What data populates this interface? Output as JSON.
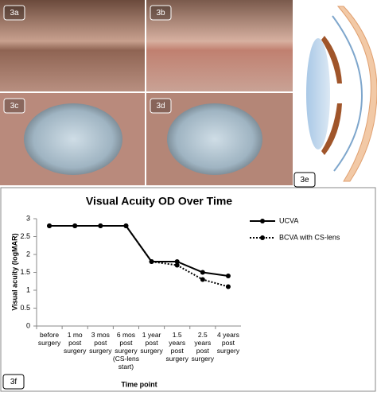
{
  "panels": {
    "labels": [
      "3a",
      "3b",
      "3c",
      "3d",
      "3e",
      "3f"
    ]
  },
  "chart_data": {
    "type": "line",
    "title": "Visual Acuity OD Over Time",
    "x_label": "Time point",
    "y_label": "Visual acuity (logMAR)",
    "categories": [
      "before\nsurgery",
      "1 mo\npost\nsurgery",
      "3 mos\npost\nsurgery",
      "6 mos\npost\nsurgery\n(CS-lens\nstart)",
      "1 year\npost\nsurgery",
      "1.5\nyears\npost\nsurgery",
      "2.5\nyears\npost\nsurgery",
      "4 years\npost\nsurgery"
    ],
    "series": [
      {
        "name": "UCVA",
        "color": "#000000",
        "line_style": "solid",
        "values": [
          2.8,
          2.8,
          2.8,
          2.8,
          1.8,
          1.8,
          1.5,
          1.4
        ]
      },
      {
        "name": "BCVA with CS-lens",
        "color": "#000000",
        "line_style": "dotted",
        "values": [
          2.8,
          2.8,
          2.8,
          2.8,
          1.8,
          1.7,
          1.3,
          1.1
        ]
      }
    ],
    "ylim": [
      0,
      3
    ],
    "yticks": [
      0,
      0.5,
      1,
      1.5,
      2,
      2.5,
      3
    ],
    "grid": false,
    "legend": "right"
  }
}
